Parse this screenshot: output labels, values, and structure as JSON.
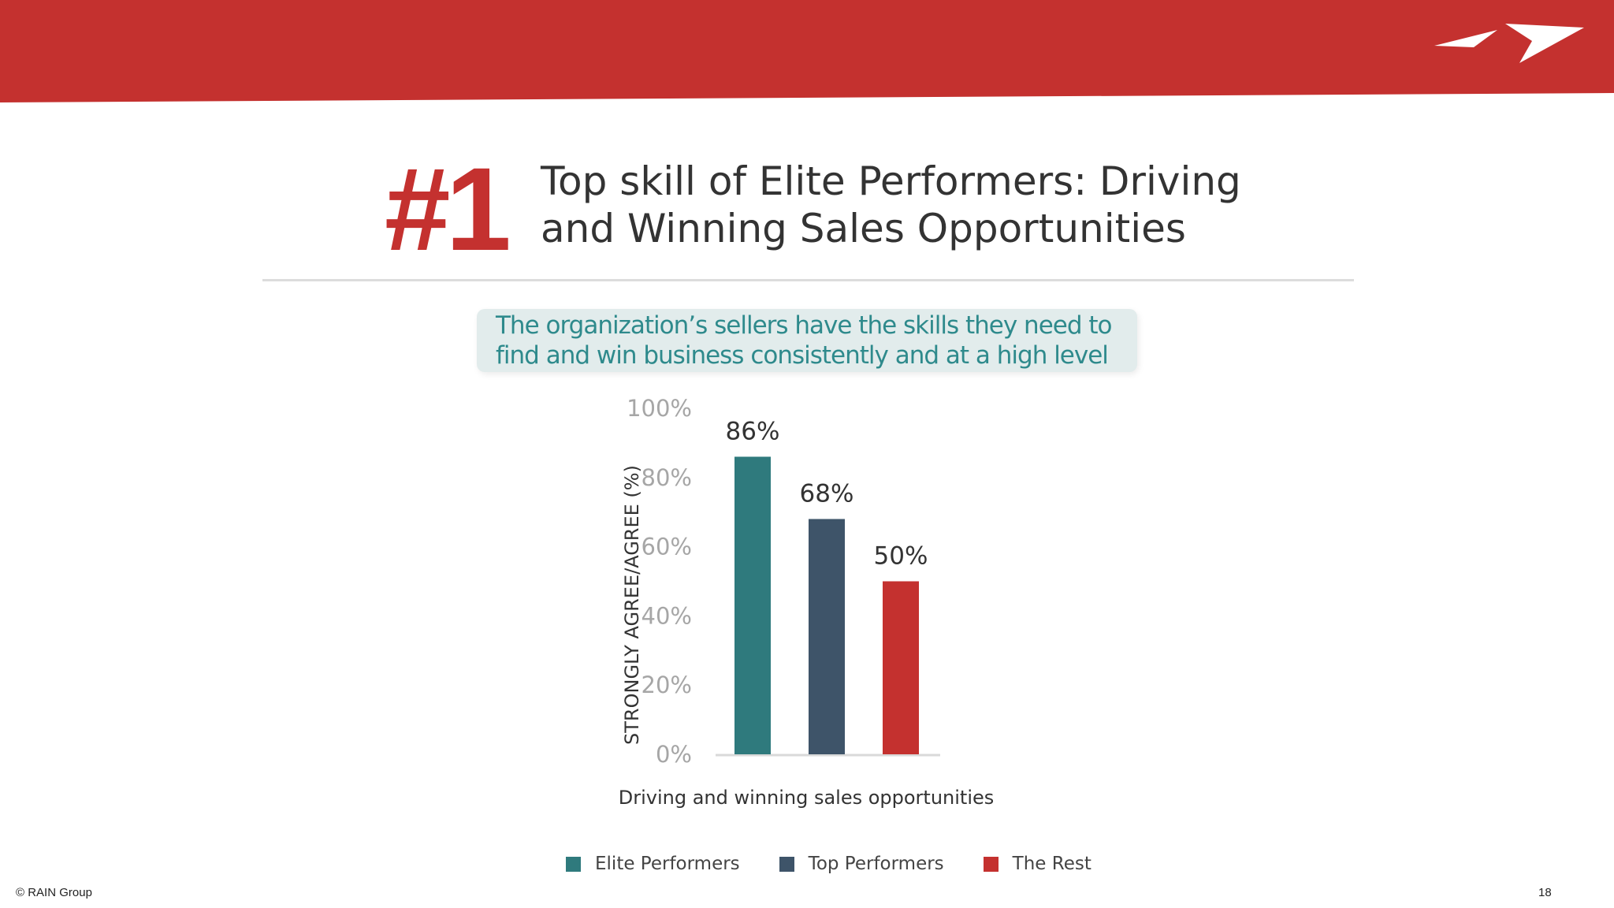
{
  "slide": {
    "rank": "#1",
    "title_lines": [
      "Top skill of Elite Performers: Driving",
      "and Winning Sales Opportunities"
    ],
    "callout_lines": [
      "The organization’s sellers have the skills they need to",
      "find and win business consistently and at a high level"
    ],
    "copyright": "© RAIN Group",
    "page_number": "18"
  },
  "colors": {
    "brand_red": "#c4312f",
    "teal": "#2f7a7d",
    "slate": "#3e5469",
    "red": "#c4312f"
  },
  "chart_data": {
    "type": "bar",
    "categories": [
      "Driving and winning sales opportunities"
    ],
    "series": [
      {
        "name": "Elite Performers",
        "values": [
          86
        ],
        "label": "86%",
        "color": "#2f7a7d"
      },
      {
        "name": "Top Performers",
        "values": [
          68
        ],
        "label": "68%",
        "color": "#3e5469"
      },
      {
        "name": "The Rest",
        "values": [
          50
        ],
        "label": "50%",
        "color": "#c4312f"
      }
    ],
    "xlabel": "Driving and winning sales opportunities",
    "ylabel": "STRONGLY AGREE/AGREE (%)",
    "ylim": [
      0,
      100
    ],
    "yticks": [
      "0%",
      "20%",
      "40%",
      "60%",
      "80%",
      "100%"
    ],
    "grid": false,
    "legend_position": "bottom"
  }
}
